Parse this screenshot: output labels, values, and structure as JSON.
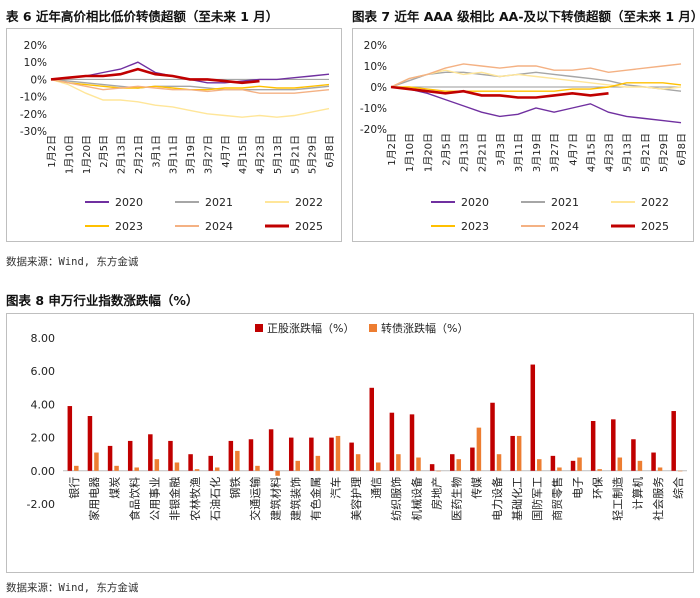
{
  "captions": {
    "fig6": "表 6  近年高价相比低价转债超额（至未来 1 月）",
    "fig7": "图表 7  近年 AAA 级相比 AA-及以下转债超额（至未来 1 月）",
    "fig8": "图表 8   申万行业指数涨跌幅（%）",
    "source1": "数据来源：Wind, 东方金诚",
    "source2": "数据来源：Wind, 东方金诚"
  },
  "chart_data": [
    {
      "type": "line",
      "x": [
        "1月2日",
        "1月10日",
        "1月20日",
        "2月5日",
        "2月13日",
        "2月21日",
        "3月1日",
        "3月11日",
        "3月19日",
        "3月27日",
        "4月7日",
        "4月15日",
        "4月23日",
        "5月13日",
        "5月21日",
        "5月29日",
        "6月8日"
      ],
      "xlabel": "",
      "ylabel": "",
      "ylim": [
        -30,
        20
      ],
      "yticks": [
        "20%",
        "10%",
        "0%",
        "-10%",
        "-20%",
        "-30%"
      ],
      "legend_position": "bottom",
      "series": [
        {
          "name": "2020",
          "color": "#7030a0",
          "values": [
            0,
            1,
            2,
            4,
            6,
            10,
            4,
            2,
            0,
            -2,
            -2,
            -1,
            0,
            0,
            1,
            2,
            3
          ]
        },
        {
          "name": "2021",
          "color": "#a6a6a6",
          "values": [
            0,
            -1,
            -2,
            -3,
            -4,
            -5,
            -4,
            -4,
            -4,
            -5,
            -6,
            -6,
            -6,
            -6,
            -6,
            -5,
            -4
          ]
        },
        {
          "name": "2022",
          "color": "#ffe699",
          "values": [
            0,
            -3,
            -8,
            -12,
            -12,
            -13,
            -15,
            -16,
            -18,
            -20,
            -21,
            -22,
            -21,
            -22,
            -21,
            -19,
            -17
          ]
        },
        {
          "name": "2023",
          "color": "#ffc000",
          "values": [
            0,
            -2,
            -3,
            -4,
            -5,
            -5,
            -4,
            -5,
            -6,
            -6,
            -5,
            -5,
            -4,
            -5,
            -5,
            -4,
            -3
          ]
        },
        {
          "name": "2024",
          "color": "#f4b183",
          "values": [
            0,
            -2,
            -4,
            -6,
            -5,
            -4,
            -5,
            -6,
            -6,
            -7,
            -6,
            -6,
            -8,
            -8,
            -8,
            -7,
            -6
          ]
        },
        {
          "name": "2025",
          "color": "#c00000",
          "values": [
            0,
            1,
            2,
            2,
            3,
            6,
            3,
            2,
            0,
            0,
            -1,
            -2,
            -1,
            null,
            null,
            null,
            null
          ]
        }
      ]
    },
    {
      "type": "line",
      "x": [
        "1月2日",
        "1月10日",
        "1月20日",
        "2月5日",
        "2月13日",
        "2月21日",
        "3月3日",
        "3月11日",
        "3月19日",
        "3月27日",
        "4月7日",
        "4月15日",
        "4月23日",
        "5月13日",
        "5月21日",
        "5月29日",
        "6月8日"
      ],
      "xlabel": "",
      "ylabel": "",
      "ylim": [
        -20,
        20
      ],
      "yticks": [
        "20%",
        "10%",
        "0%",
        "-10%",
        "-20%"
      ],
      "legend_position": "bottom",
      "series": [
        {
          "name": "2020",
          "color": "#7030a0",
          "values": [
            0,
            -1,
            -3,
            -6,
            -9,
            -12,
            -14,
            -13,
            -10,
            -12,
            -10,
            -8,
            -12,
            -14,
            -15,
            -16,
            -17
          ]
        },
        {
          "name": "2021",
          "color": "#a6a6a6",
          "values": [
            0,
            3,
            6,
            7,
            7,
            6,
            5,
            6,
            7,
            6,
            5,
            4,
            3,
            1,
            0,
            -1,
            -2
          ]
        },
        {
          "name": "2022",
          "color": "#ffe699",
          "values": [
            0,
            4,
            6,
            8,
            6,
            7,
            5,
            6,
            5,
            4,
            3,
            2,
            1,
            0,
            0,
            -1,
            0
          ]
        },
        {
          "name": "2023",
          "color": "#ffc000",
          "values": [
            0,
            0,
            -1,
            -2,
            -2,
            -2,
            -2,
            -2,
            -2,
            -2,
            -1,
            -1,
            0,
            2,
            2,
            2,
            1
          ]
        },
        {
          "name": "2024",
          "color": "#f4b183",
          "values": [
            0,
            4,
            6,
            9,
            11,
            10,
            9,
            10,
            10,
            8,
            8,
            9,
            7,
            8,
            9,
            10,
            11
          ]
        },
        {
          "name": "2025",
          "color": "#c00000",
          "values": [
            0,
            -1,
            -2,
            -3,
            -2,
            -4,
            -4,
            -5,
            -5,
            -4,
            -3,
            -4,
            -3,
            null,
            null,
            null,
            null
          ]
        }
      ]
    },
    {
      "type": "bar",
      "categories": [
        "银行",
        "家用电器",
        "煤炭",
        "食品饮料",
        "公用事业",
        "非银金融",
        "农林牧渔",
        "石油石化",
        "钢铁",
        "交通运输",
        "建筑材料",
        "建筑装饰",
        "有色金属",
        "汽车",
        "美容护理",
        "通信",
        "纺织服饰",
        "机械设备",
        "房地产",
        "医药生物",
        "传媒",
        "电力设备",
        "基础化工",
        "国防军工",
        "商贸零售",
        "电子",
        "环保",
        "轻工制造",
        "计算机",
        "社会服务",
        "综合"
      ],
      "ylim": [
        -2,
        8
      ],
      "yticks": [
        "8.00",
        "6.00",
        "4.00",
        "2.00",
        "0.00",
        "-2.00"
      ],
      "legend_position": "top",
      "series": [
        {
          "name": "正股涨跌幅（%）",
          "color": "#c00000",
          "values": [
            3.9,
            3.3,
            1.5,
            1.8,
            2.2,
            1.8,
            1.0,
            0.9,
            1.8,
            1.9,
            2.5,
            2.0,
            2.0,
            2.0,
            1.7,
            5.0,
            3.5,
            3.4,
            0.4,
            1.0,
            1.4,
            4.1,
            2.1,
            6.4,
            0.9,
            0.6,
            3.0,
            3.1,
            1.9,
            1.1,
            3.6
          ]
        },
        {
          "name": "转债涨跌幅（%）",
          "color": "#ed7d31",
          "values": [
            0.3,
            1.1,
            0.3,
            0.2,
            0.7,
            0.5,
            0.1,
            0.2,
            1.2,
            0.3,
            -0.3,
            0.6,
            0.9,
            2.1,
            1.0,
            0.5,
            1.0,
            0.8,
            0.0,
            0.7,
            2.6,
            1.0,
            2.1,
            0.7,
            0.2,
            0.8,
            0.1,
            0.8,
            0.6,
            0.2,
            0.0
          ]
        }
      ]
    }
  ]
}
